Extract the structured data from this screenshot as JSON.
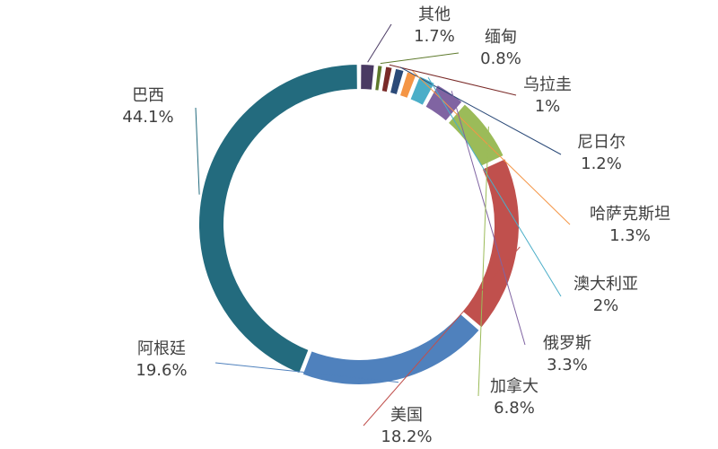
{
  "chart_data": {
    "type": "pie",
    "subtype": "donut",
    "title": "",
    "legend": "none",
    "series": [
      {
        "values": [
          {
            "label": "其他",
            "value": 1.7,
            "display": "1.7%",
            "color": "#4A3A63"
          },
          {
            "label": "缅甸",
            "value": 0.8,
            "display": "0.8%",
            "color": "#5E7A2C"
          },
          {
            "label": "乌拉圭",
            "value": 1.0,
            "display": "1%",
            "color": "#7A2A28"
          },
          {
            "label": "尼日尔",
            "value": 1.2,
            "display": "1.2%",
            "color": "#2B4A78"
          },
          {
            "label": "哈萨克斯坦",
            "value": 1.3,
            "display": "1.3%",
            "color": "#F49545"
          },
          {
            "label": "澳大利亚",
            "value": 2.0,
            "display": "2%",
            "color": "#4BAEC8"
          },
          {
            "label": "俄罗斯",
            "value": 3.3,
            "display": "3.3%",
            "color": "#8064A2"
          },
          {
            "label": "加拿大",
            "value": 6.8,
            "display": "6.8%",
            "color": "#9BBB59"
          },
          {
            "label": "美国",
            "value": 18.2,
            "display": "18.2%",
            "color": "#C0504D"
          },
          {
            "label": "阿根廷",
            "value": 19.6,
            "display": "19.6%",
            "color": "#4F81BD"
          },
          {
            "label": "巴西",
            "value": 44.1,
            "display": "44.1%",
            "color": "#236B7E"
          }
        ]
      }
    ]
  }
}
